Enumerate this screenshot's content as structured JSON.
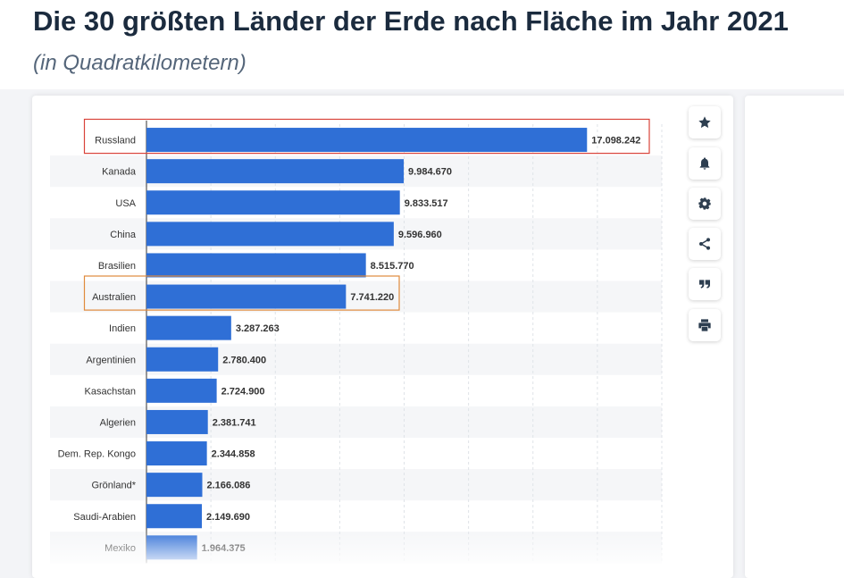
{
  "header": {
    "title": "Die 30 größten Länder der Erde nach Fläche im Jahr 2021",
    "subtitle": "(in Quadratkilometern)"
  },
  "colors": {
    "bar": "#2f6fd6",
    "highlight_primary": "#d9423a",
    "highlight_secondary": "#e08a3c"
  },
  "toolbar": [
    {
      "name": "favorite-button",
      "icon": "star-icon"
    },
    {
      "name": "notification-button",
      "icon": "bell-icon"
    },
    {
      "name": "settings-button",
      "icon": "gear-icon"
    },
    {
      "name": "share-button",
      "icon": "share-icon"
    },
    {
      "name": "cite-button",
      "icon": "quote-icon"
    },
    {
      "name": "print-button",
      "icon": "print-icon"
    }
  ],
  "chart_data": {
    "type": "bar",
    "orientation": "horizontal",
    "title": "Die 30 größten Länder der Erde nach Fläche im Jahr 2021",
    "xlabel": "",
    "ylabel": "",
    "unit": "Quadratkilometer",
    "xlim": [
      0,
      20000000
    ],
    "grid": true,
    "categories": [
      "Russland",
      "Kanada",
      "USA",
      "China",
      "Brasilien",
      "Australien",
      "Indien",
      "Argentinien",
      "Kasachstan",
      "Algerien",
      "Dem. Rep. Kongo",
      "Grönland*",
      "Saudi-Arabien",
      "Mexiko"
    ],
    "values": [
      17098242,
      9984670,
      9833517,
      9596960,
      8515770,
      7741220,
      3287263,
      2780400,
      2724900,
      2381741,
      2344858,
      2166086,
      2149690,
      1964375
    ],
    "value_labels": [
      "17.098.242",
      "9.984.670",
      "9.833.517",
      "9.596.960",
      "8.515.770",
      "7.741.220",
      "3.287.263",
      "2.780.400",
      "2.724.900",
      "2.381.741",
      "2.344.858",
      "2.166.086",
      "2.149.690",
      "1.964.375"
    ],
    "highlighted": [
      {
        "category": "Russland",
        "style": "primary"
      },
      {
        "category": "Australien",
        "style": "secondary"
      }
    ]
  }
}
